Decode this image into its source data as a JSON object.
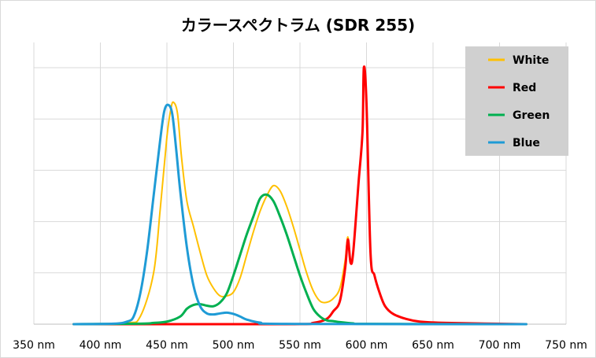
{
  "chart_data": {
    "type": "line",
    "title": "カラースペクトラム (SDR 255)",
    "xlabel": "",
    "ylabel": "",
    "xlim": [
      350,
      750
    ],
    "ylim": [
      0,
      1
    ],
    "x_ticks": [
      350,
      400,
      450,
      500,
      550,
      600,
      650,
      700,
      750
    ],
    "x_tick_labels": [
      "350 nm",
      "400 nm",
      "450 nm",
      "500 nm",
      "550 nm",
      "600 nm",
      "650 nm",
      "700 nm",
      "750 nm"
    ],
    "y_gridlines": [
      0,
      0.2,
      0.4,
      0.6,
      0.8,
      1.0
    ],
    "y_tick_labels_shown": false,
    "grid": true,
    "legend_position": "top-right",
    "series": [
      {
        "name": "White",
        "color": "#ffc000",
        "points": [
          [
            380,
            0
          ],
          [
            420,
            0.005
          ],
          [
            430,
            0.03
          ],
          [
            440,
            0.2
          ],
          [
            445,
            0.45
          ],
          [
            450,
            0.73
          ],
          [
            453,
            0.84
          ],
          [
            455,
            0.865
          ],
          [
            458,
            0.82
          ],
          [
            461,
            0.65
          ],
          [
            465,
            0.48
          ],
          [
            470,
            0.38
          ],
          [
            475,
            0.28
          ],
          [
            480,
            0.19
          ],
          [
            485,
            0.14
          ],
          [
            490,
            0.11
          ],
          [
            495,
            0.11
          ],
          [
            500,
            0.125
          ],
          [
            505,
            0.18
          ],
          [
            510,
            0.27
          ],
          [
            515,
            0.36
          ],
          [
            520,
            0.44
          ],
          [
            525,
            0.5
          ],
          [
            530,
            0.54
          ],
          [
            535,
            0.52
          ],
          [
            540,
            0.46
          ],
          [
            545,
            0.38
          ],
          [
            550,
            0.29
          ],
          [
            555,
            0.2
          ],
          [
            560,
            0.13
          ],
          [
            565,
            0.09
          ],
          [
            570,
            0.085
          ],
          [
            575,
            0.1
          ],
          [
            580,
            0.14
          ],
          [
            584,
            0.25
          ],
          [
            586,
            0.34
          ],
          [
            588,
            0.24
          ],
          [
            590,
            0.28
          ],
          [
            594,
            0.55
          ],
          [
            597,
            0.75
          ],
          [
            598,
            1.0
          ],
          [
            600,
            0.86
          ],
          [
            603,
            0.28
          ],
          [
            606,
            0.19
          ],
          [
            610,
            0.12
          ],
          [
            614,
            0.07
          ],
          [
            620,
            0.04
          ],
          [
            630,
            0.02
          ],
          [
            640,
            0.01
          ],
          [
            660,
            0.005
          ],
          [
            720,
            0
          ]
        ]
      },
      {
        "name": "Red",
        "color": "#ff0000",
        "points": [
          [
            380,
            0
          ],
          [
            540,
            0
          ],
          [
            560,
            0.005
          ],
          [
            570,
            0.02
          ],
          [
            575,
            0.05
          ],
          [
            580,
            0.09
          ],
          [
            584,
            0.22
          ],
          [
            586,
            0.33
          ],
          [
            588,
            0.24
          ],
          [
            590,
            0.28
          ],
          [
            594,
            0.55
          ],
          [
            597,
            0.75
          ],
          [
            598,
            1.0
          ],
          [
            600,
            0.86
          ],
          [
            603,
            0.28
          ],
          [
            606,
            0.19
          ],
          [
            610,
            0.12
          ],
          [
            614,
            0.07
          ],
          [
            620,
            0.04
          ],
          [
            630,
            0.02
          ],
          [
            640,
            0.01
          ],
          [
            660,
            0.005
          ],
          [
            720,
            0
          ]
        ]
      },
      {
        "name": "Green",
        "color": "#00b050",
        "points": [
          [
            380,
            0
          ],
          [
            430,
            0.002
          ],
          [
            440,
            0.005
          ],
          [
            450,
            0.01
          ],
          [
            460,
            0.03
          ],
          [
            465,
            0.06
          ],
          [
            470,
            0.075
          ],
          [
            475,
            0.078
          ],
          [
            480,
            0.072
          ],
          [
            485,
            0.07
          ],
          [
            490,
            0.085
          ],
          [
            495,
            0.12
          ],
          [
            500,
            0.19
          ],
          [
            505,
            0.27
          ],
          [
            510,
            0.35
          ],
          [
            515,
            0.42
          ],
          [
            520,
            0.49
          ],
          [
            525,
            0.505
          ],
          [
            530,
            0.48
          ],
          [
            535,
            0.42
          ],
          [
            540,
            0.35
          ],
          [
            545,
            0.27
          ],
          [
            550,
            0.19
          ],
          [
            555,
            0.12
          ],
          [
            560,
            0.06
          ],
          [
            565,
            0.03
          ],
          [
            570,
            0.015
          ],
          [
            575,
            0.012
          ],
          [
            580,
            0.008
          ],
          [
            590,
            0.003
          ],
          [
            600,
            0.001
          ],
          [
            720,
            0
          ]
        ]
      },
      {
        "name": "Blue",
        "color": "#1f9bd6",
        "points": [
          [
            380,
            0
          ],
          [
            410,
            0.002
          ],
          [
            420,
            0.01
          ],
          [
            425,
            0.03
          ],
          [
            430,
            0.12
          ],
          [
            435,
            0.28
          ],
          [
            440,
            0.5
          ],
          [
            445,
            0.72
          ],
          [
            448,
            0.83
          ],
          [
            451,
            0.855
          ],
          [
            454,
            0.82
          ],
          [
            457,
            0.68
          ],
          [
            460,
            0.52
          ],
          [
            465,
            0.3
          ],
          [
            470,
            0.15
          ],
          [
            475,
            0.07
          ],
          [
            480,
            0.042
          ],
          [
            485,
            0.038
          ],
          [
            490,
            0.042
          ],
          [
            495,
            0.045
          ],
          [
            500,
            0.04
          ],
          [
            505,
            0.03
          ],
          [
            510,
            0.018
          ],
          [
            520,
            0.006
          ],
          [
            540,
            0.001
          ],
          [
            720,
            0
          ]
        ]
      }
    ]
  }
}
